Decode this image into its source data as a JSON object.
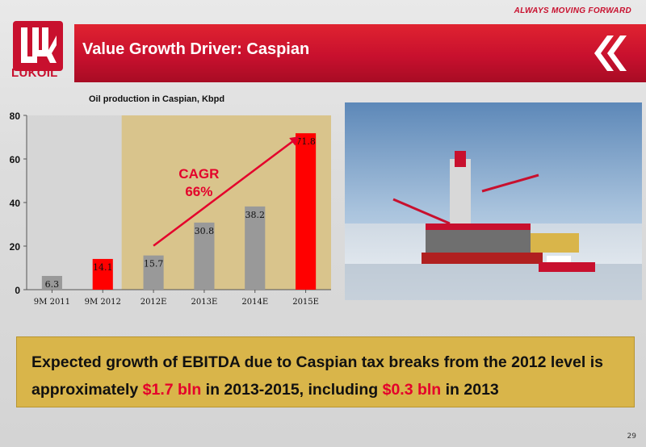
{
  "tagline": "ALWAYS MOVING FORWARD",
  "logo_text": "LUKOIL",
  "slide_title": "Value Growth Driver: Caspian",
  "colors": {
    "brand_red": "#c8102e",
    "bar_grey": "#999999",
    "bar_red": "#ff0000",
    "highlight_bg": "#d9c48c",
    "box_bg": "#d9b54a"
  },
  "icons": {
    "logo": "lukoil-logo-icon",
    "chevrons": "double-chevron-left-icon"
  },
  "chart_data": {
    "type": "bar",
    "title": "Oil production in Caspian, Kbpd",
    "categories": [
      "9M 2011",
      "9M 2012",
      "2012E",
      "2013E",
      "2014E",
      "2015E"
    ],
    "values": [
      6.3,
      14.1,
      15.7,
      30.8,
      38.2,
      71.8
    ],
    "value_labels": [
      "6.3",
      "14.1",
      "15.7",
      "30.8",
      "38.2",
      "71.8"
    ],
    "bar_colors": [
      "grey",
      "red",
      "grey",
      "grey",
      "grey",
      "red"
    ],
    "ylim": [
      0,
      80
    ],
    "yticks": [
      "0",
      "20",
      "40",
      "60",
      "80"
    ],
    "highlight_from_category": "2012E",
    "annotation": {
      "line1": "CAGR",
      "line2": "66%"
    },
    "grid": false
  },
  "photo_caption": "",
  "message": {
    "part1": "Expected growth of EBITDA due to Caspian tax breaks from the 2012 level is approximately ",
    "highlight1": "$1.7 bln",
    "part2": " in 2013-2015, including ",
    "highlight2": "$0.3 bln",
    "part3": " in 2013"
  },
  "page_number": "29"
}
